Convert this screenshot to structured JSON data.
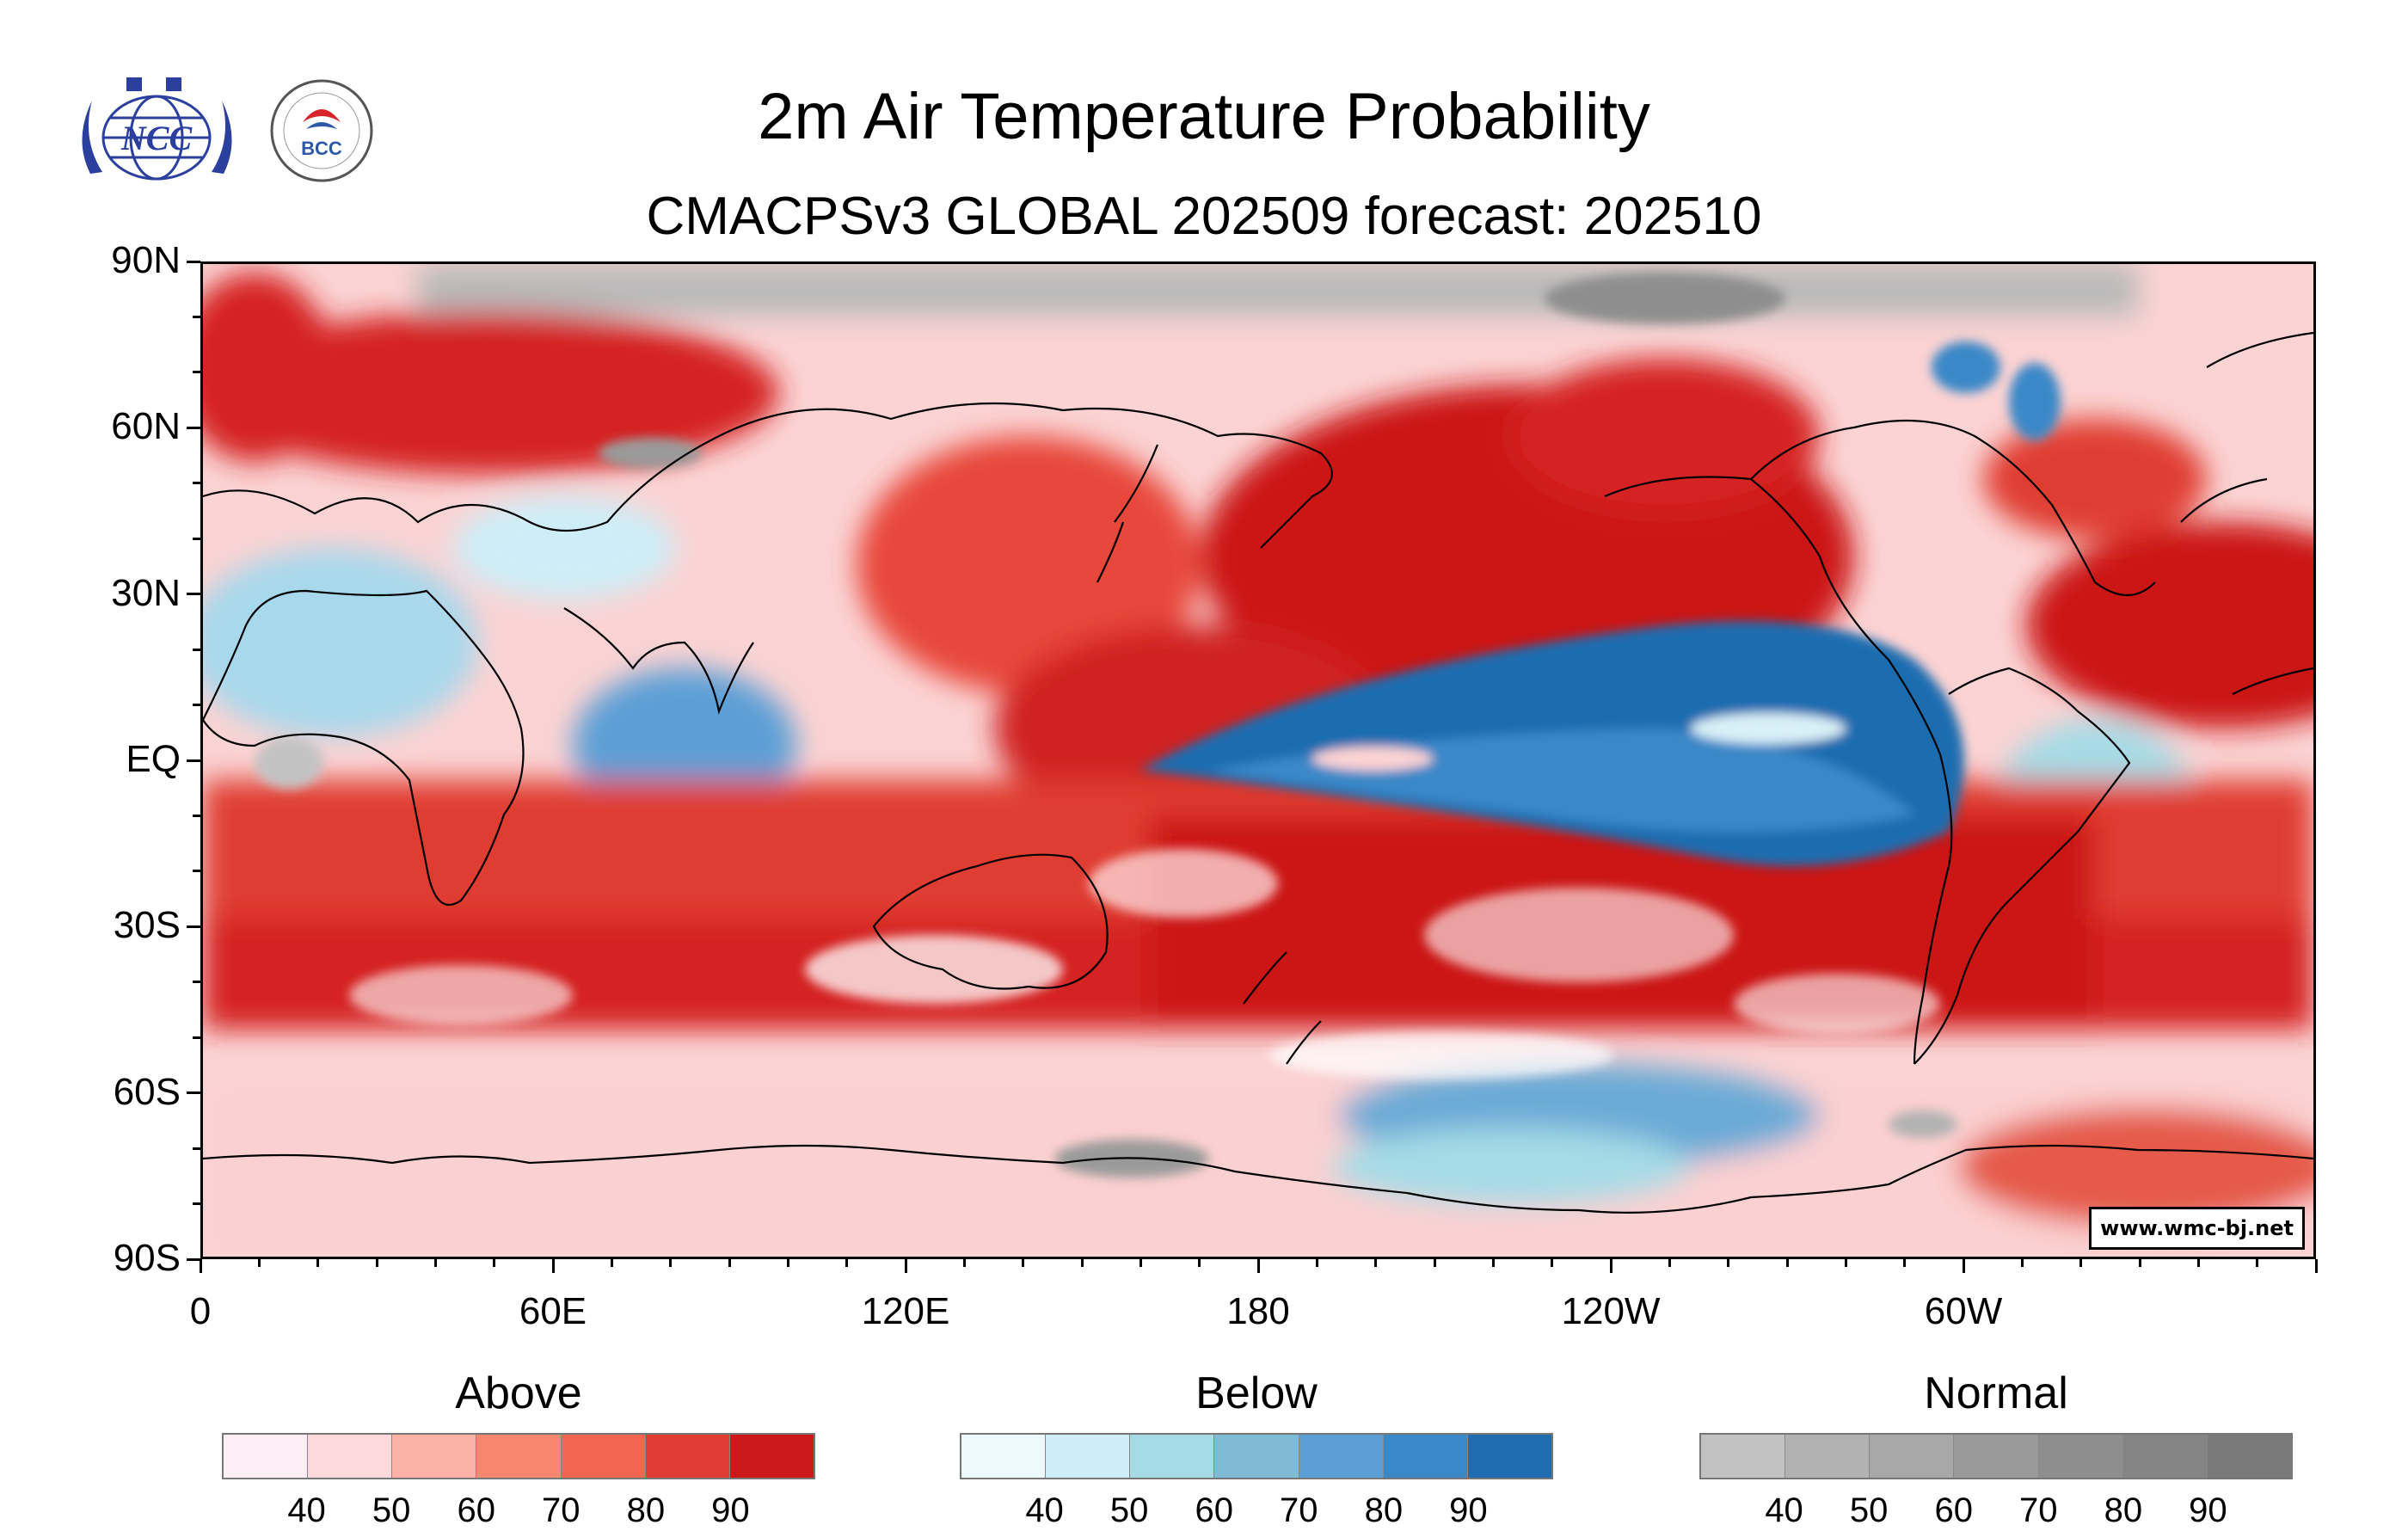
{
  "header": {
    "title": "2m Air Temperature Probability",
    "subtitle": "CMACPSv3 GLOBAL 202509 forecast: 202510"
  },
  "logos": [
    {
      "name": "NCC",
      "label": "NCC",
      "icon": "ncc-globe-logo-icon"
    },
    {
      "name": "BCC",
      "label": "BCC",
      "icon": "bcc-climate-center-logo-icon"
    }
  ],
  "map": {
    "projection": "cylindrical-equidistant",
    "lat_labels": [
      "90N",
      "60N",
      "30N",
      "EQ",
      "30S",
      "60S",
      "90S"
    ],
    "lat_values": [
      90,
      60,
      30,
      0,
      -30,
      -60,
      -90
    ],
    "lon_labels": [
      "0",
      "60E",
      "120E",
      "180",
      "120W",
      "60W"
    ],
    "lon_values": [
      0,
      60,
      120,
      180,
      240,
      300
    ],
    "lon_range": [
      0,
      360
    ],
    "lat_range": [
      -90,
      90
    ],
    "credit": "www.wmc-bj.net"
  },
  "legend": {
    "above": {
      "title": "Above",
      "ticks": [
        "40",
        "50",
        "60",
        "70",
        "80",
        "90"
      ],
      "colors": [
        "#fdeef6",
        "#fdd9dc",
        "#fbb1a6",
        "#f8876f",
        "#f26550",
        "#e03c32",
        "#cc1818"
      ]
    },
    "below": {
      "title": "Below",
      "ticks": [
        "40",
        "50",
        "60",
        "70",
        "80",
        "90"
      ],
      "colors": [
        "#edf9fb",
        "#cdeef8",
        "#a6dbe6",
        "#7ebbd4",
        "#5b9fd6",
        "#3b88c8",
        "#1f6db0"
      ]
    },
    "normal": {
      "title": "Normal",
      "ticks": [
        "40",
        "50",
        "60",
        "70",
        "80",
        "90"
      ],
      "colors": [
        "#c2c2c2",
        "#b2b2b2",
        "#a8a8a8",
        "#9a9a9a",
        "#8e8e8e",
        "#848484",
        "#7a7a7a"
      ]
    }
  }
}
